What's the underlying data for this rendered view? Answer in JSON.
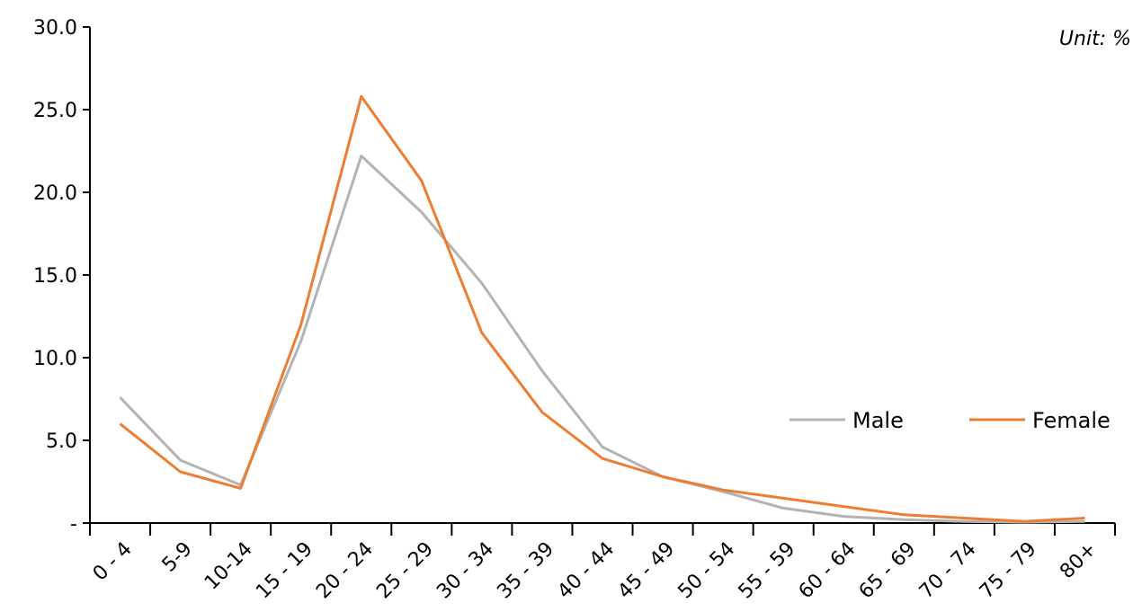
{
  "chart_data": {
    "type": "line",
    "categories": [
      "0 - 4",
      "5-9",
      "10-14",
      "15 - 19",
      "20 - 24",
      "25 - 29",
      "30 - 34",
      "35 - 39",
      "40 - 44",
      "45 - 49",
      "50 - 54",
      "55 - 59",
      "60 - 64",
      "65 - 69",
      "70 - 74",
      "75 - 79",
      "80+"
    ],
    "series": [
      {
        "name": "Male",
        "color": "#b3b3b3",
        "values": [
          7.6,
          3.8,
          2.3,
          11.0,
          22.2,
          18.8,
          14.5,
          9.2,
          4.6,
          2.8,
          1.9,
          0.9,
          0.4,
          0.2,
          0.1,
          0.05,
          0.1
        ]
      },
      {
        "name": "Female",
        "color": "#ed7d31",
        "values": [
          6.0,
          3.1,
          2.1,
          12.0,
          25.8,
          20.7,
          11.5,
          6.7,
          3.9,
          2.8,
          2.0,
          1.5,
          1.0,
          0.5,
          0.3,
          0.1,
          0.3
        ]
      }
    ],
    "ylim": [
      0,
      30
    ],
    "y_ticks": [
      0,
      5,
      10,
      15,
      20,
      25,
      30
    ],
    "y_tick_labels": [
      "-",
      "5.0",
      "10.0",
      "15.0",
      "20.0",
      "25.0",
      "30.0"
    ],
    "unit_label": "Unit: %",
    "legend_position": "right-middle",
    "grid": false
  }
}
